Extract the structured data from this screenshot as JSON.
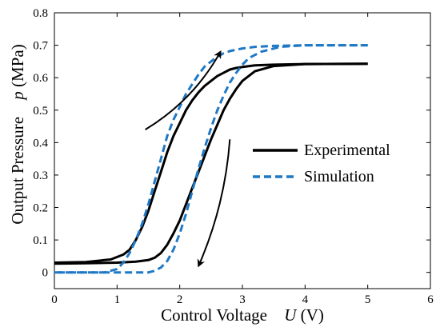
{
  "chart_data": {
    "type": "line",
    "xlim": [
      0,
      6
    ],
    "ylim": [
      -0.05,
      0.8
    ],
    "x_ticks": [
      "0",
      "1",
      "2",
      "3",
      "4",
      "5",
      "6"
    ],
    "y_ticks": [
      "0",
      "0.1",
      "0.2",
      "0.3",
      "0.4",
      "0.5",
      "0.6",
      "0.7",
      "0.8"
    ],
    "xlabel": {
      "text": "Control Voltage",
      "symbol": "U",
      "unit": "(V)"
    },
    "ylabel": {
      "text": "Output Pressure",
      "symbol": "p",
      "unit": "(MPa)"
    },
    "grid": false,
    "legend_position": "right",
    "series": [
      {
        "name": "Experimental",
        "color": "#000000",
        "style": "solid",
        "rising": {
          "x": [
            0,
            0.5,
            0.9,
            1.1,
            1.2,
            1.3,
            1.4,
            1.5,
            1.6,
            1.7,
            1.8,
            1.9,
            2.0,
            2.1,
            2.2,
            2.3,
            2.4,
            2.5,
            2.6,
            2.7,
            2.8,
            2.9,
            3.0,
            3.2,
            3.5,
            4.0,
            5.0
          ],
          "y": [
            0.03,
            0.032,
            0.04,
            0.055,
            0.07,
            0.1,
            0.14,
            0.19,
            0.25,
            0.31,
            0.37,
            0.42,
            0.46,
            0.5,
            0.53,
            0.555,
            0.575,
            0.59,
            0.605,
            0.615,
            0.625,
            0.63,
            0.633,
            0.638,
            0.64,
            0.642,
            0.643
          ]
        },
        "falling": {
          "x": [
            5.0,
            4.0,
            3.5,
            3.2,
            3.0,
            2.9,
            2.8,
            2.7,
            2.6,
            2.5,
            2.4,
            2.3,
            2.2,
            2.1,
            2.0,
            1.9,
            1.8,
            1.7,
            1.6,
            1.5,
            1.3,
            1.0,
            0.5,
            0
          ],
          "y": [
            0.643,
            0.642,
            0.636,
            0.62,
            0.59,
            0.565,
            0.535,
            0.5,
            0.455,
            0.41,
            0.36,
            0.31,
            0.26,
            0.21,
            0.16,
            0.12,
            0.085,
            0.06,
            0.045,
            0.038,
            0.033,
            0.03,
            0.028,
            0.027
          ]
        }
      },
      {
        "name": "Simulation",
        "color": "#1f78c4",
        "style": "dashed",
        "rising": {
          "x": [
            0,
            0.8,
            1.0,
            1.1,
            1.2,
            1.3,
            1.4,
            1.5,
            1.6,
            1.7,
            1.8,
            1.9,
            2.0,
            2.1,
            2.2,
            2.3,
            2.4,
            2.5,
            2.6,
            2.7,
            2.8,
            3.0,
            3.2,
            3.5,
            4.0,
            5.0
          ],
          "y": [
            0.0,
            0.0,
            0.01,
            0.03,
            0.06,
            0.1,
            0.15,
            0.21,
            0.28,
            0.35,
            0.42,
            0.47,
            0.51,
            0.55,
            0.58,
            0.61,
            0.635,
            0.65,
            0.665,
            0.675,
            0.682,
            0.69,
            0.695,
            0.698,
            0.7,
            0.7
          ]
        },
        "falling": {
          "x": [
            5.0,
            4.0,
            3.6,
            3.3,
            3.1,
            3.0,
            2.9,
            2.8,
            2.7,
            2.6,
            2.5,
            2.4,
            2.3,
            2.2,
            2.1,
            2.0,
            1.9,
            1.8,
            1.7,
            1.6,
            1.5,
            1.3,
            1.0,
            0.5,
            0
          ],
          "y": [
            0.7,
            0.7,
            0.695,
            0.68,
            0.66,
            0.64,
            0.615,
            0.585,
            0.545,
            0.5,
            0.445,
            0.385,
            0.32,
            0.25,
            0.18,
            0.12,
            0.07,
            0.035,
            0.015,
            0.005,
            0.0,
            0.0,
            0.0,
            0.0,
            0.0
          ]
        }
      }
    ],
    "annotations": [
      {
        "type": "arrow",
        "meaning": "rising branch",
        "from": [
          1.45,
          0.44
        ],
        "to": [
          2.65,
          0.68
        ]
      },
      {
        "type": "arrow",
        "meaning": "falling branch",
        "from": [
          2.8,
          0.41
        ],
        "to": [
          2.3,
          0.02
        ]
      }
    ]
  }
}
